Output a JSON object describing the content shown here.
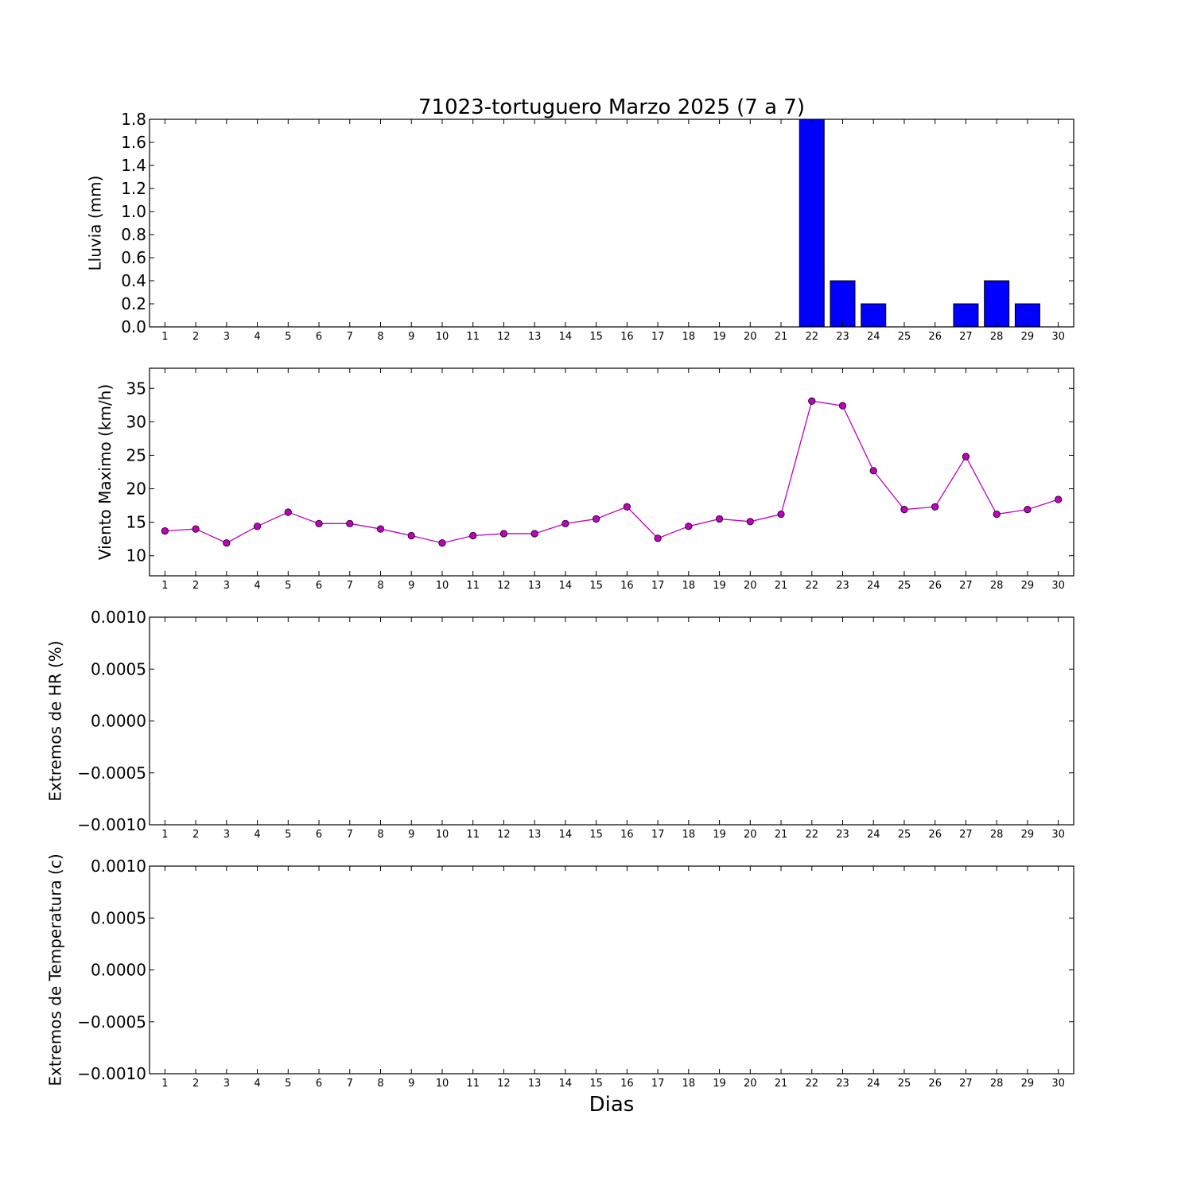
{
  "chart_data": {
    "title": "71023-tortuguero Marzo 2025  (7 a 7)",
    "xlabel": "Dias",
    "days": [
      1,
      2,
      3,
      4,
      5,
      6,
      7,
      8,
      9,
      10,
      11,
      12,
      13,
      14,
      15,
      16,
      17,
      18,
      19,
      20,
      21,
      22,
      23,
      24,
      25,
      26,
      27,
      28,
      29,
      30
    ],
    "panels": [
      {
        "id": "lluvia",
        "type": "bar",
        "ylabel": "Lluvia (mm)",
        "ylim": [
          0,
          1.8
        ],
        "yticks": [
          "0.0",
          "0.2",
          "0.4",
          "0.6",
          "0.8",
          "1.0",
          "1.2",
          "1.4",
          "1.6",
          "1.8"
        ],
        "color": "#0000ff",
        "values": [
          0,
          0,
          0,
          0,
          0,
          0,
          0,
          0,
          0,
          0,
          0,
          0,
          0,
          0,
          0,
          0,
          0,
          0,
          0,
          0,
          0,
          1.8,
          0.4,
          0.2,
          0,
          0,
          0.2,
          0.4,
          0.2,
          null
        ]
      },
      {
        "id": "viento",
        "type": "line",
        "ylabel": "Viento Maximo (km/h)",
        "ylim": [
          7,
          38
        ],
        "yticks": [
          "10",
          "15",
          "20",
          "25",
          "30",
          "35"
        ],
        "color": "#c000c0",
        "values": [
          13.7,
          14.0,
          11.9,
          14.4,
          16.5,
          14.8,
          14.8,
          14.0,
          13.0,
          11.9,
          13.0,
          13.3,
          13.3,
          14.8,
          15.5,
          17.3,
          12.6,
          14.4,
          15.5,
          15.1,
          16.2,
          33.1,
          32.4,
          22.7,
          16.9,
          17.3,
          24.8,
          16.2,
          16.9,
          18.4
        ]
      },
      {
        "id": "hr",
        "type": "line",
        "ylabel": "Extremos de HR (%)",
        "ylim": [
          -0.001,
          0.001
        ],
        "yticks": [
          "−0.0010",
          "−0.0005",
          "0.0000",
          "0.0005",
          "0.0010"
        ],
        "values": []
      },
      {
        "id": "temperatura",
        "type": "line",
        "ylabel": "Extremos de Temperatura (c)",
        "ylim": [
          -0.001,
          0.001
        ],
        "yticks": [
          "−0.0010",
          "−0.0005",
          "0.0000",
          "0.0005",
          "0.0010"
        ],
        "values": []
      }
    ]
  }
}
